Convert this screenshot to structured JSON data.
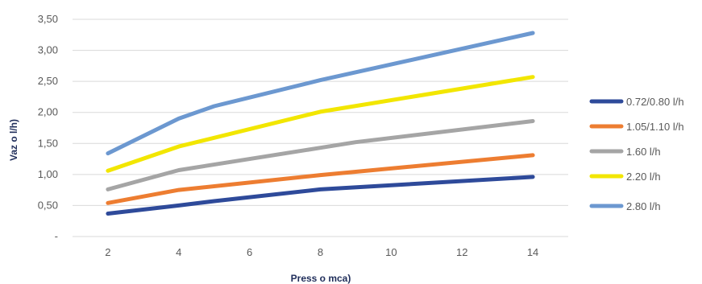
{
  "chart_data": {
    "type": "line",
    "title": "",
    "xlabel": "Press  o  mca)",
    "ylabel": "Vaz  o  l/h)",
    "xlim": [
      1,
      15
    ],
    "ylim": [
      0,
      3.5
    ],
    "x_ticks": [
      2,
      4,
      6,
      8,
      10,
      12,
      14
    ],
    "y_ticks": [
      {
        "value": 0,
        "label": "-"
      },
      {
        "value": 0.5,
        "label": "0,50"
      },
      {
        "value": 1.0,
        "label": "1,00"
      },
      {
        "value": 1.5,
        "label": "1,50"
      },
      {
        "value": 2.0,
        "label": "2,00"
      },
      {
        "value": 2.5,
        "label": "2,50"
      },
      {
        "value": 3.0,
        "label": "3,00"
      },
      {
        "value": 3.5,
        "label": "3,50"
      }
    ],
    "grid": true,
    "legend_position": "right",
    "series": [
      {
        "name": "0.72/0.80 l/h",
        "color": "#2e4a9a",
        "x": [
          2,
          4,
          5,
          8,
          14
        ],
        "values": [
          0.37,
          0.5,
          0.57,
          0.76,
          0.96
        ]
      },
      {
        "name": "1.05/1.10 l/h",
        "color": "#ed7d31",
        "x": [
          2,
          4,
          8,
          14
        ],
        "values": [
          0.54,
          0.75,
          0.99,
          1.31
        ]
      },
      {
        "name": "1.60 l/h",
        "color": "#a5a5a5",
        "x": [
          2,
          4,
          8,
          9,
          14
        ],
        "values": [
          0.76,
          1.07,
          1.43,
          1.52,
          1.86
        ]
      },
      {
        "name": "2.20 l/h",
        "color": "#f2e600",
        "x": [
          2,
          4,
          8,
          14
        ],
        "values": [
          1.06,
          1.45,
          2.01,
          2.57
        ]
      },
      {
        "name": "2.80 l/h",
        "color": "#6c98d0",
        "x": [
          2,
          4,
          5,
          8,
          14
        ],
        "values": [
          1.34,
          1.9,
          2.1,
          2.52,
          3.28
        ]
      }
    ]
  }
}
